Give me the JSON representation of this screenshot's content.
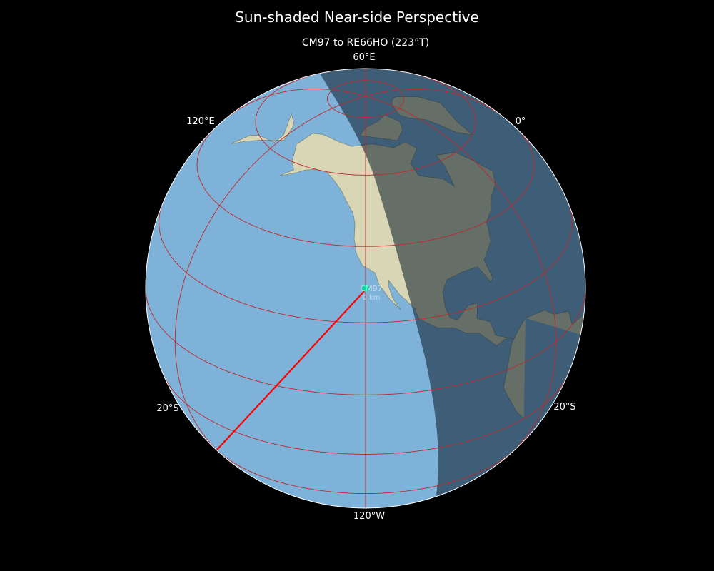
{
  "title": "Sun-shaded Near-side Perspective",
  "subtitle": "CM97 to RE66HO (223°T)",
  "tick_labels": {
    "top": "60°E",
    "upper_left": "120°E",
    "upper_right": "0°",
    "lower_left": "20°S",
    "lower_right": "20°S",
    "bottom": "120°W"
  },
  "station": {
    "label": "CM97",
    "distance": "0 km",
    "color": "#00d9a0"
  },
  "path_color": "#ff0000",
  "graticule_color": "#c0282a",
  "ocean_color": "#7fb2d8",
  "land_color": "#d8d6b4",
  "night_shading": "dark overlay on eastern side"
}
